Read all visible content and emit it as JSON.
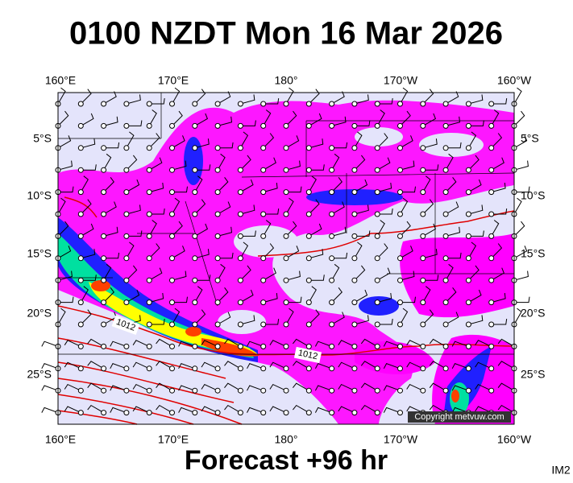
{
  "header": {
    "title": "0100 NZDT Mon 16 Mar 2026"
  },
  "map": {
    "lon_labels": [
      "160°E",
      "170°E",
      "180°",
      "170°W",
      "160°W"
    ],
    "lat_labels": [
      "5°S",
      "10°S",
      "15°S",
      "20°S",
      "25°S"
    ],
    "isobar_labels": [
      "1012",
      "1012"
    ],
    "copyright": "Copyright metvuw.com"
  },
  "footer": {
    "caption": "Forecast +96 hr",
    "code": "IM2"
  }
}
